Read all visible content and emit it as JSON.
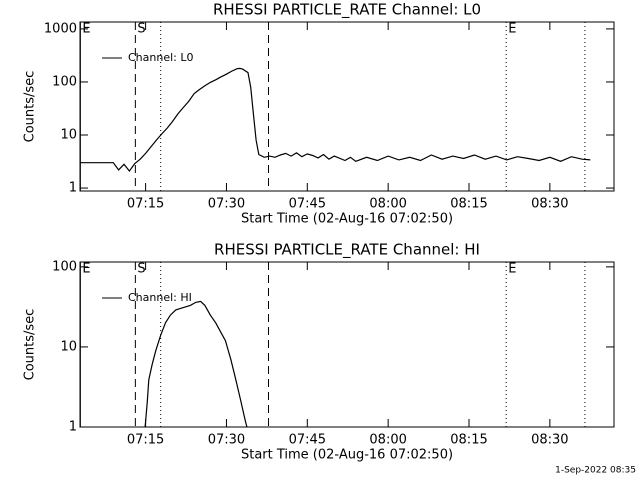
{
  "chart_data": [
    {
      "type": "line",
      "title": "RHESSI PARTICLE_RATE Channel: L0",
      "x_label": "Start Time (02-Aug-16 07:02:50)",
      "y_label": "Counts/sec",
      "log_y": true,
      "legend": "upper left",
      "xlim": [
        422.83,
        521.9
      ],
      "ylim": [
        0.88,
        1350
      ],
      "xticks": [
        {
          "value": 435,
          "label": "07:15"
        },
        {
          "value": 450,
          "label": "07:30"
        },
        {
          "value": 465,
          "label": "07:45"
        },
        {
          "value": 480,
          "label": "08:00"
        },
        {
          "value": 495,
          "label": "08:15"
        },
        {
          "value": 510,
          "label": "08:30"
        }
      ],
      "yticks": [
        1,
        10,
        100,
        1000
      ],
      "markers": [
        {
          "x": 422.9,
          "style": "solid",
          "label": "E"
        },
        {
          "x": 433.1,
          "style": "dashed",
          "label": "S"
        },
        {
          "x": 437.8,
          "style": "dotted"
        },
        {
          "x": 457.8,
          "style": "dashed"
        },
        {
          "x": 501.9,
          "style": "dotted",
          "label": "E"
        },
        {
          "x": 516.5,
          "style": "dotted"
        }
      ],
      "x": [
        422.9,
        424,
        426,
        428,
        429,
        430,
        431,
        432,
        433,
        434,
        435,
        436,
        437,
        438,
        439,
        440,
        441,
        442,
        443,
        444,
        445,
        446,
        447,
        448,
        449,
        450,
        451,
        452,
        452.5,
        453,
        454,
        454.5,
        455,
        455.5,
        456,
        457,
        458,
        459,
        460,
        461,
        462,
        463,
        464,
        465,
        466,
        467,
        468,
        469,
        470,
        472,
        473,
        474,
        476,
        478,
        480,
        482,
        484,
        486,
        488,
        490,
        492,
        494,
        496,
        498,
        500,
        502,
        504,
        506,
        508,
        510,
        512,
        514,
        516,
        517.5
      ],
      "series": [
        {
          "name": "Channel: L0",
          "color": "#000000",
          "values": [
            3,
            3,
            3,
            3,
            3,
            2.2,
            2.8,
            2.1,
            2.9,
            3.5,
            4.5,
            6,
            8,
            10.5,
            13.5,
            18,
            25,
            33,
            43,
            60,
            72,
            85,
            98,
            110,
            125,
            140,
            160,
            178,
            180,
            175,
            150,
            80,
            25,
            8,
            4.3,
            3.8,
            4,
            3.8,
            4.2,
            4.5,
            4,
            4.6,
            3.9,
            4.4,
            4.1,
            3.7,
            4.3,
            3.5,
            4,
            3.3,
            3.8,
            3.2,
            3.8,
            3.3,
            4,
            3.4,
            3.8,
            3.3,
            4.2,
            3.5,
            4,
            3.6,
            4.2,
            3.5,
            4,
            3.4,
            3.9,
            3.6,
            3.3,
            3.8,
            3.2,
            3.9,
            3.5,
            3.4
          ]
        }
      ]
    },
    {
      "type": "line",
      "title": "RHESSI PARTICLE_RATE Channel: HI",
      "x_label": "Start Time (02-Aug-16 07:02:50)",
      "y_label": "Counts/sec",
      "log_y": true,
      "legend": "upper left",
      "xlim": [
        422.83,
        521.9
      ],
      "ylim": [
        1,
        115
      ],
      "xticks": [
        {
          "value": 435,
          "label": "07:15"
        },
        {
          "value": 450,
          "label": "07:30"
        },
        {
          "value": 465,
          "label": "07:45"
        },
        {
          "value": 480,
          "label": "08:00"
        },
        {
          "value": 495,
          "label": "08:15"
        },
        {
          "value": 510,
          "label": "08:30"
        }
      ],
      "yticks": [
        1,
        10,
        100
      ],
      "markers": [
        {
          "x": 422.9,
          "style": "solid",
          "label": "E"
        },
        {
          "x": 433.1,
          "style": "dashed",
          "label": "S"
        },
        {
          "x": 437.8,
          "style": "dotted"
        },
        {
          "x": 457.8,
          "style": "dashed"
        },
        {
          "x": 501.9,
          "style": "dotted",
          "label": "E"
        },
        {
          "x": 516.5,
          "style": "dotted"
        }
      ],
      "x": [
        434.9,
        435.3,
        435.6,
        436.2,
        436.9,
        437.8,
        438.7,
        439.6,
        440.6,
        442,
        443.3,
        444.3,
        445.2,
        446,
        447,
        448,
        449,
        449.8,
        450.8,
        451.7,
        452.6,
        453.5,
        453.8
      ],
      "series": [
        {
          "name": "Channel: HI",
          "color": "#000000",
          "values": [
            1,
            2,
            3.9,
            6,
            9,
            14,
            20,
            25,
            29,
            31,
            33,
            36,
            37,
            33,
            25,
            20,
            15,
            12,
            7,
            4,
            2.2,
            1.2,
            1
          ]
        }
      ]
    }
  ],
  "timestamp": "1-Sep-2022 08:35"
}
